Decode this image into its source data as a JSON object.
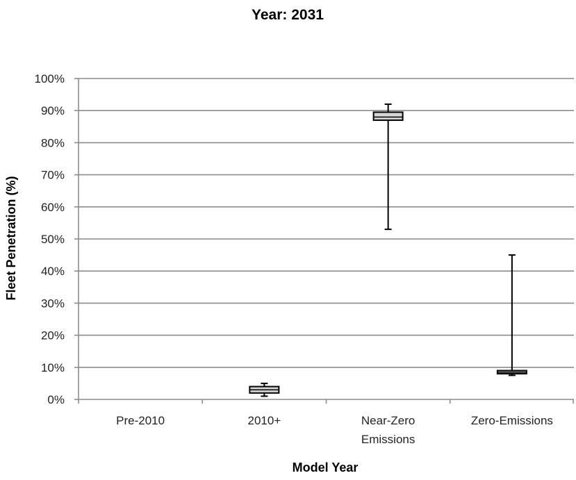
{
  "chart_data": {
    "type": "box",
    "title": "Year: 2031",
    "xlabel": "Model Year",
    "ylabel": "Fleet Penetration (%)",
    "ylim": [
      0,
      100
    ],
    "yticks": [
      "0%",
      "10%",
      "20%",
      "30%",
      "40%",
      "50%",
      "60%",
      "70%",
      "80%",
      "90%",
      "100%"
    ],
    "ytick_values": [
      0,
      10,
      20,
      30,
      40,
      50,
      60,
      70,
      80,
      90,
      100
    ],
    "grid": true,
    "categories": [
      {
        "label": [
          "Pre-2010"
        ],
        "stats": null
      },
      {
        "label": [
          "2010+"
        ],
        "stats": {
          "min": 1,
          "q1": 2,
          "median": 3,
          "q3": 4,
          "max": 5
        }
      },
      {
        "label": [
          "Near-Zero",
          "Emissions"
        ],
        "stats": {
          "min": 53,
          "q1": 87,
          "median": 88,
          "q3": 89.5,
          "max": 92
        }
      },
      {
        "label": [
          "Zero-Emissions"
        ],
        "stats": {
          "min": 7.5,
          "q1": 8,
          "median": 8.5,
          "q3": 9,
          "max": 45
        }
      }
    ]
  }
}
